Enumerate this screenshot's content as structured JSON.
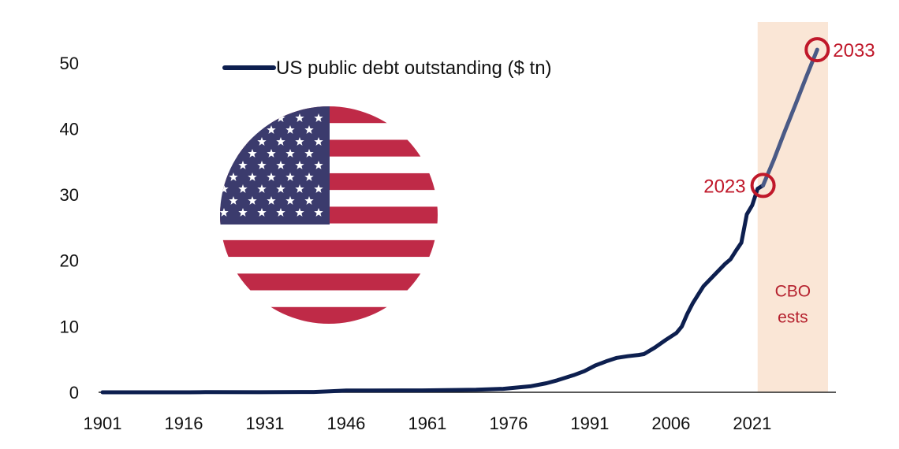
{
  "chart_data": {
    "type": "line",
    "legend": "US public debt outstanding ($ tn)",
    "legend_position": "top-center",
    "x_ticks": [
      "1901",
      "1916",
      "1931",
      "1946",
      "1961",
      "1976",
      "1991",
      "2006",
      "2021"
    ],
    "y_ticks": [
      "0",
      "10",
      "20",
      "30",
      "40",
      "50"
    ],
    "xlim": [
      1901,
      2035
    ],
    "ylim": [
      0,
      55
    ],
    "grid": false,
    "series": [
      {
        "name": "US public debt outstanding ($ tn)",
        "color": "#0d1f4f",
        "actual": {
          "x": [
            1901,
            1910,
            1917,
            1920,
            1930,
            1940,
            1943,
            1946,
            1950,
            1960,
            1970,
            1975,
            1980,
            1983,
            1985,
            1988,
            1990,
            1992,
            1994,
            1996,
            1998,
            2000,
            2001,
            2003,
            2005,
            2007,
            2008,
            2009,
            2010,
            2011,
            2012,
            2014,
            2016,
            2017,
            2018,
            2019,
            2020,
            2021,
            2022,
            2023
          ],
          "y": [
            0.001,
            0.001,
            0.003,
            0.026,
            0.016,
            0.043,
            0.14,
            0.27,
            0.26,
            0.29,
            0.38,
            0.53,
            0.91,
            1.38,
            1.82,
            2.6,
            3.2,
            4.06,
            4.69,
            5.22,
            5.48,
            5.67,
            5.8,
            6.78,
            7.93,
            9.0,
            10.0,
            11.9,
            13.5,
            14.8,
            16.1,
            17.8,
            19.5,
            20.2,
            21.5,
            22.7,
            27.0,
            28.4,
            30.9,
            31.4
          ]
        },
        "projection": {
          "x": [
            2023,
            2025,
            2027,
            2029,
            2031,
            2033
          ],
          "y": [
            31.4,
            35.3,
            39.6,
            43.7,
            47.9,
            52.0
          ]
        }
      }
    ],
    "shaded_region": {
      "x_start": 2022,
      "x_end": 2035,
      "label_lines": [
        "CBO",
        "ests"
      ],
      "color": "#fae6d6"
    },
    "annotations": [
      {
        "label": "2023",
        "x": 2023,
        "y": 31.4,
        "side": "left"
      },
      {
        "label": "2033",
        "x": 2033,
        "y": 52.0,
        "side": "right"
      }
    ],
    "annotation_color": "#c0182a"
  }
}
